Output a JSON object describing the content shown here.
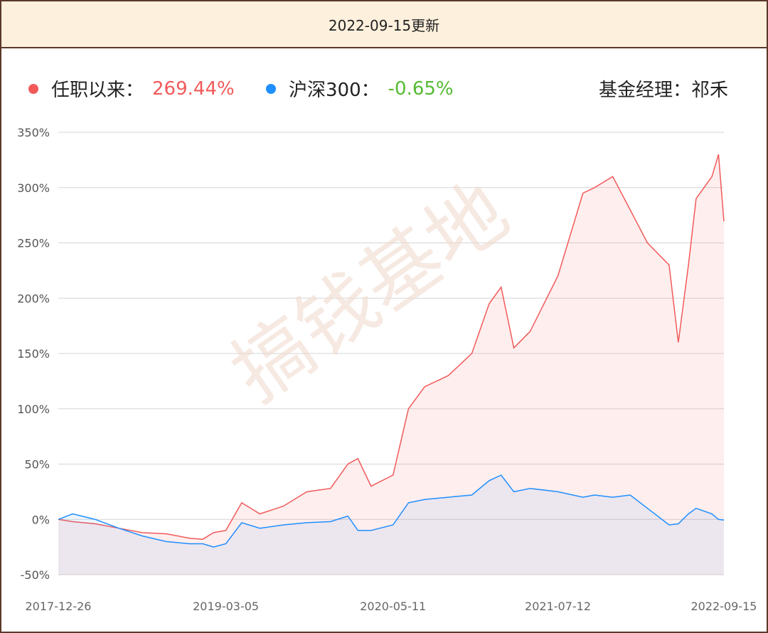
{
  "header": {
    "title": "2022-09-15更新"
  },
  "legend": {
    "fund": {
      "label": "任职以来：",
      "value": "269.44%",
      "color": "#f25a5a"
    },
    "index": {
      "label": "沪深300：",
      "value": "-0.65%",
      "color": "#1e8fff",
      "value_color": "#55bb33"
    },
    "manager": "基金经理：祁禾"
  },
  "watermark": "搞钱基地",
  "chart_data": {
    "type": "area",
    "title": "",
    "xlabel": "",
    "ylabel": "",
    "x_tick_labels": [
      "2017-12-26",
      "2019-03-05",
      "2020-05-11",
      "2021-07-12",
      "2022-09-15"
    ],
    "y_tick_labels": [
      "350%",
      "300%",
      "250%",
      "200%",
      "150%",
      "100%",
      "50%",
      "0%",
      "-50%"
    ],
    "ylim": [
      -50,
      350
    ],
    "xlim": [
      "2017-12-26",
      "2022-09-15"
    ],
    "grid": true,
    "x": [
      "2017-12-26",
      "2018-02-01",
      "2018-04-01",
      "2018-06-01",
      "2018-08-01",
      "2018-10-01",
      "2018-12-01",
      "2019-01-04",
      "2019-02-01",
      "2019-03-05",
      "2019-04-15",
      "2019-06-01",
      "2019-08-01",
      "2019-10-01",
      "2019-12-01",
      "2020-01-15",
      "2020-02-10",
      "2020-03-15",
      "2020-05-11",
      "2020-06-20",
      "2020-08-01",
      "2020-10-01",
      "2020-12-01",
      "2021-01-15",
      "2021-02-15",
      "2021-03-20",
      "2021-05-01",
      "2021-07-12",
      "2021-09-15",
      "2021-10-15",
      "2021-12-01",
      "2022-01-15",
      "2022-03-01",
      "2022-04-26",
      "2022-05-20",
      "2022-06-15",
      "2022-07-05",
      "2022-08-15",
      "2022-09-01",
      "2022-09-15"
    ],
    "series": [
      {
        "name": "任职以来",
        "color": "#f25a5a",
        "values": [
          0,
          -2,
          -4,
          -8,
          -12,
          -13,
          -17,
          -18,
          -12,
          -10,
          15,
          5,
          12,
          25,
          28,
          50,
          55,
          30,
          40,
          100,
          120,
          130,
          150,
          195,
          210,
          155,
          170,
          220,
          295,
          300,
          310,
          280,
          250,
          230,
          160,
          230,
          290,
          310,
          330,
          269.44
        ]
      },
      {
        "name": "沪深300",
        "color": "#1e8fff",
        "values": [
          0,
          5,
          0,
          -8,
          -15,
          -20,
          -22,
          -22,
          -25,
          -22,
          -3,
          -8,
          -5,
          -3,
          -2,
          3,
          -10,
          -10,
          -5,
          15,
          18,
          20,
          22,
          35,
          40,
          25,
          28,
          25,
          20,
          22,
          20,
          22,
          10,
          -5,
          -4,
          5,
          10,
          5,
          0,
          -0.65
        ]
      }
    ]
  }
}
